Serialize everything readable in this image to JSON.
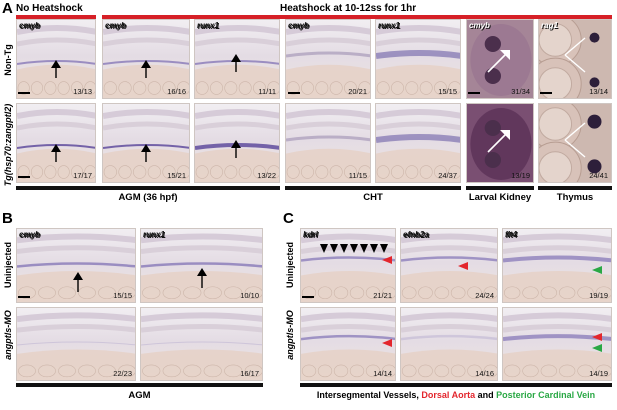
{
  "panels": {
    "A": {
      "letter": "A",
      "header_left": "No Heatshock",
      "header_right": "Heatshock at 10-12ss for 1hr",
      "row_labels": [
        "Non-Tg",
        "Tg(hsp70:zangptl2)"
      ],
      "cells_row1": [
        {
          "gene": "cmyb",
          "ratio": "13/13"
        },
        {
          "gene": "cmyb",
          "ratio": "16/16"
        },
        {
          "gene": "runx1",
          "ratio": "11/11"
        },
        {
          "gene": "cmyb",
          "ratio": "20/21"
        },
        {
          "gene": "runx1",
          "ratio": "15/15"
        },
        {
          "gene": "cmyb",
          "ratio": "31/34"
        },
        {
          "gene": "rag1",
          "ratio": "13/14"
        }
      ],
      "cells_row2": [
        {
          "ratio": "17/17"
        },
        {
          "ratio": "15/21"
        },
        {
          "ratio": "13/22"
        },
        {
          "ratio": "11/15"
        },
        {
          "ratio": "24/37"
        },
        {
          "ratio": "13/19"
        },
        {
          "ratio": "24/41"
        }
      ],
      "bottom_labels": [
        "AGM (36 hpf)",
        "CHT",
        "Larval Kidney",
        "Thymus"
      ]
    },
    "B": {
      "letter": "B",
      "row_labels": [
        "Uninjected",
        "angptls-MO"
      ],
      "cells_row1": [
        {
          "gene": "cmyb",
          "ratio": "15/15"
        },
        {
          "gene": "runx1",
          "ratio": "10/10"
        }
      ],
      "cells_row2": [
        {
          "ratio": "22/23"
        },
        {
          "ratio": "16/17"
        }
      ],
      "bottom_label": "AGM"
    },
    "C": {
      "letter": "C",
      "row_labels": [
        "Uninjected",
        "angptls-MO"
      ],
      "cells_row1": [
        {
          "gene": "kdrl",
          "ratio": "21/21"
        },
        {
          "gene": "efnb2a",
          "ratio": "24/24"
        },
        {
          "gene": "flt4",
          "ratio": "19/19"
        }
      ],
      "cells_row2": [
        {
          "ratio": "14/14"
        },
        {
          "ratio": "14/16"
        },
        {
          "ratio": "14/19"
        }
      ],
      "bottom_label_parts": [
        "Intersegmental Vessels, ",
        "Dorsal Aorta",
        " and ",
        "Posterior Cardinal Vein"
      ]
    }
  },
  "colors": {
    "red_bar": "#d62027",
    "red_text": "#e3262d",
    "green_text": "#2aa845",
    "stain": "#6b5aa6",
    "tissue": "#d9c9c2"
  }
}
